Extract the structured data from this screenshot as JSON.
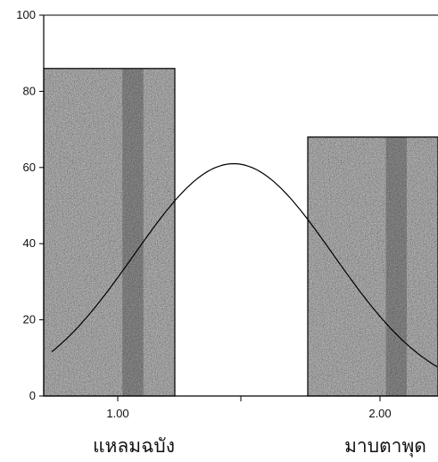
{
  "chart_data": {
    "type": "bar",
    "title": "",
    "xlabel": "",
    "ylabel": "",
    "categories": [
      "1.00",
      "2.00"
    ],
    "category_names": [
      "แหลมฉบัง",
      "มาบตาพุด"
    ],
    "values": [
      86,
      68
    ],
    "ylim": [
      0,
      100
    ],
    "yticks": [
      0,
      20,
      40,
      60,
      80,
      100
    ],
    "grid": false,
    "legend": "none",
    "bar_style": "textured-gray",
    "overlay": {
      "type": "normal-curve",
      "peak_value": 61
    }
  },
  "colors": {
    "bar_fill": "#8c8c8c",
    "axis": "#000000",
    "curve": "#000000"
  }
}
